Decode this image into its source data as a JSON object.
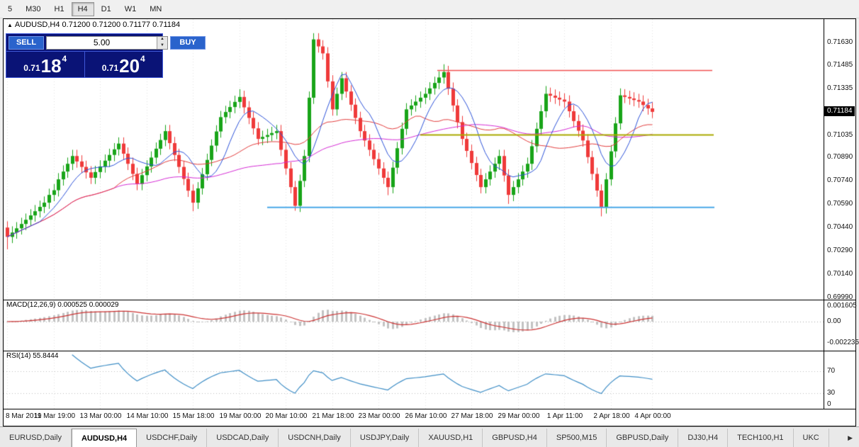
{
  "toolbar": {
    "timeframes": [
      "5",
      "M30",
      "H1",
      "H4",
      "D1",
      "W1",
      "MN"
    ],
    "active": "H4"
  },
  "icons": {
    "symbol_marker": "▲",
    "spinner_up": "▲",
    "spinner_down": "▼",
    "tabs_scroll_right": "▶"
  },
  "chart": {
    "ohlc_header": "AUDUSD,H4 0.71200 0.71200 0.71177 0.71184",
    "current_price": "0.71184",
    "price_axis": [
      "0.71630",
      "0.71485",
      "0.71335",
      "0.71035",
      "0.70890",
      "0.70740",
      "0.70590",
      "0.70440",
      "0.70290",
      "0.70140",
      "0.69990"
    ],
    "lines": {
      "resistance": 0.7145,
      "pivot": 0.71035,
      "support": 0.7057
    }
  },
  "trade_panel": {
    "sell_label": "SELL",
    "buy_label": "BUY",
    "volume": "5.00",
    "bid": {
      "prefix": "0.71",
      "big": "18",
      "sup": "4"
    },
    "ask": {
      "prefix": "0.71",
      "big": "20",
      "sup": "4"
    }
  },
  "macd": {
    "label": "MACD(12,26,9) 0.000525 0.000029",
    "axis": [
      "0.001605",
      "0.00",
      "-0.002235"
    ]
  },
  "rsi": {
    "label": "RSI(14) 55.8444",
    "axis": [
      "70",
      "30",
      "0"
    ]
  },
  "time_axis": [
    "8 Mar 2019",
    "11 Mar 19:00",
    "13 Mar 00:00",
    "14 Mar 10:00",
    "15 Mar 18:00",
    "19 Mar 00:00",
    "20 Mar 10:00",
    "21 Mar 18:00",
    "23 Mar 00:00",
    "26 Mar 10:00",
    "27 Mar 18:00",
    "29 Mar 00:00",
    "1 Apr 11:00",
    "2 Apr 18:00",
    "4 Apr 00:00"
  ],
  "tabs": {
    "items": [
      "EURUSD,Daily",
      "AUDUSD,H4",
      "USDCHF,Daily",
      "USDCAD,Daily",
      "USDCNH,Daily",
      "USDJPY,Daily",
      "XAUUSD,H1",
      "GBPUSD,H4",
      "SP500,M15",
      "GBPUSD,Daily",
      "DJ30,H4",
      "TECH100,H1",
      "UKC"
    ],
    "active": "AUDUSD,H4"
  },
  "colors": {
    "up": "#18a418",
    "down": "#ef3a3a",
    "ma_fast": "#2c52d8",
    "ma_mid": "#e23c3c",
    "ma_slow": "#d42ad4",
    "resistance": "#f05050",
    "pivot": "#aaaa00",
    "support": "#4aa8e8",
    "macd_hist": "#c2c2c2",
    "macd_signal": "#cc3333",
    "rsi_line": "#3f8ec6",
    "badge_bg": "#000000"
  },
  "chart_data": {
    "type": "candlestick",
    "symbol": "AUDUSD",
    "timeframe": "H4",
    "first_open": 0.7044,
    "wick": 0.0004,
    "closes": [
      0.7038,
      0.70408,
      0.70435,
      0.70463,
      0.7049,
      0.70518,
      0.70545,
      0.70573,
      0.706,
      0.7065,
      0.7068,
      0.7075,
      0.708,
      0.7085,
      0.709,
      0.70865,
      0.7083,
      0.70795,
      0.7076,
      0.70797,
      0.70833,
      0.7087,
      0.70907,
      0.70943,
      0.7098,
      0.70915,
      0.7085,
      0.70785,
      0.7072,
      0.70777,
      0.70833,
      0.7089,
      0.70947,
      0.71003,
      0.7106,
      0.70983,
      0.70907,
      0.7083,
      0.70753,
      0.70677,
      0.706,
      0.70692,
      0.70783,
      0.70875,
      0.70967,
      0.71058,
      0.7115,
      0.71183,
      0.71215,
      0.71248,
      0.7128,
      0.71213,
      0.71145,
      0.71078,
      0.7101,
      0.71023,
      0.71035,
      0.71048,
      0.7106,
      0.7094,
      0.7082,
      0.707,
      0.7058,
      0.7074,
      0.709,
      0.71275,
      0.7165,
      0.71605,
      0.7156,
      0.7138,
      0.712,
      0.713,
      0.714,
      0.71315,
      0.7123,
      0.71145,
      0.7106,
      0.71,
      0.7094,
      0.7088,
      0.7082,
      0.7076,
      0.707,
      0.70825,
      0.7095,
      0.71075,
      0.712,
      0.71225,
      0.7125,
      0.71275,
      0.713,
      0.71335,
      0.7137,
      0.71405,
      0.7144,
      0.71333,
      0.71225,
      0.71118,
      0.7101,
      0.70933,
      0.70855,
      0.70778,
      0.707,
      0.7075,
      0.708,
      0.7085,
      0.709,
      0.70775,
      0.7065,
      0.707,
      0.7075,
      0.708,
      0.7085,
      0.70963,
      0.71075,
      0.71188,
      0.713,
      0.71288,
      0.71275,
      0.71263,
      0.7125,
      0.71188,
      0.71125,
      0.71063,
      0.71,
      0.70893,
      0.70785,
      0.70678,
      0.7057,
      0.7075,
      0.7093,
      0.7111,
      0.7129,
      0.7128,
      0.7127,
      0.7126,
      0.7125,
      0.71228,
      0.71206,
      0.71184
    ],
    "special_highs": {
      "50": 0.7133,
      "66": 0.7169,
      "94": 0.7149,
      "116": 0.7135,
      "132": 0.71335
    },
    "special_lows": {
      "0": 0.703,
      "40": 0.70545,
      "62": 0.70548,
      "82": 0.70648,
      "108": 0.70592,
      "128": 0.70512
    }
  }
}
